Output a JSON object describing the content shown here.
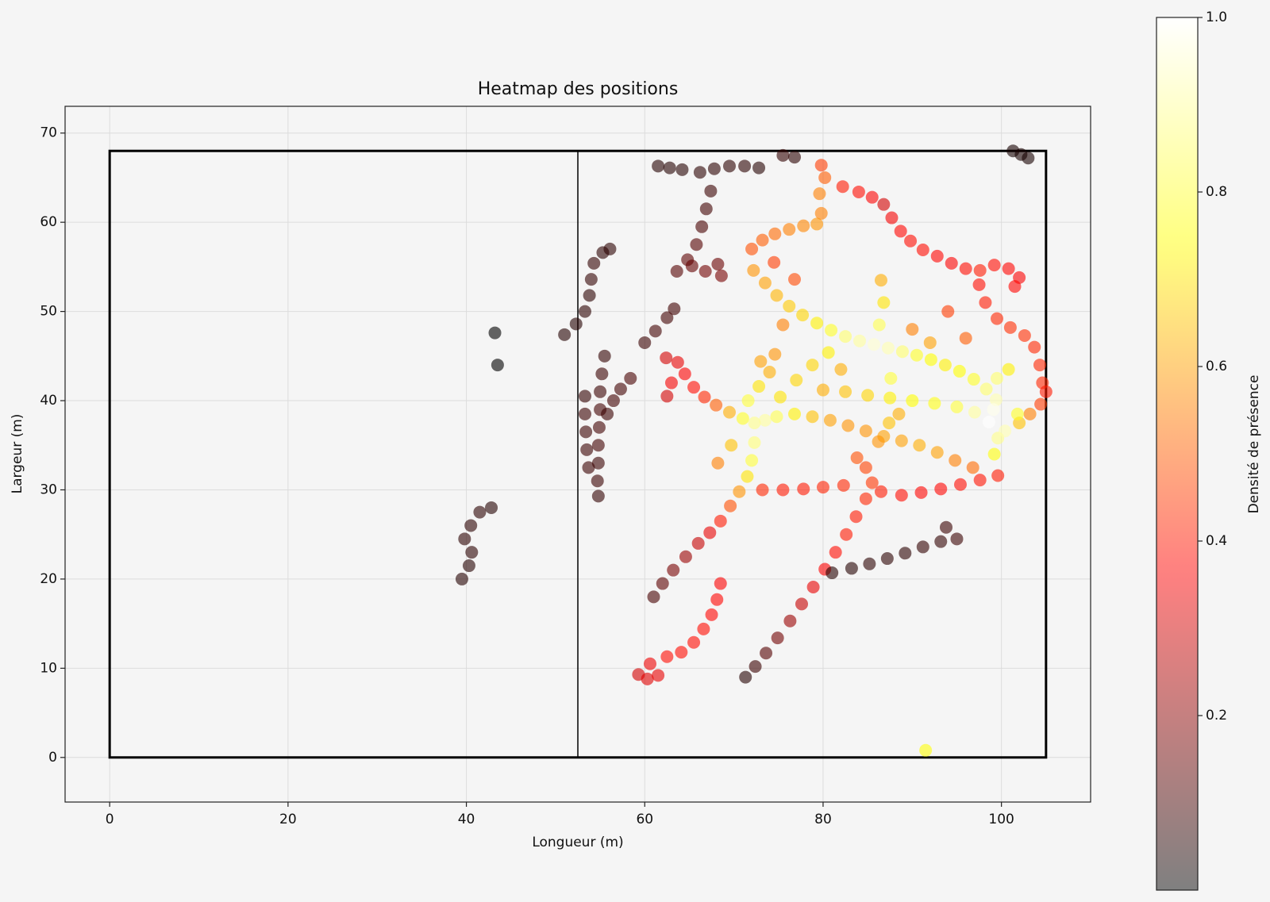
{
  "chart_data": {
    "type": "scatter",
    "title": "Heatmap des positions",
    "x_label": "Longueur (m)",
    "y_label": "Largeur (m)",
    "xlim": [
      -5,
      110
    ],
    "ylim": [
      -5,
      73
    ],
    "xticks": [
      0,
      20,
      40,
      60,
      80,
      100
    ],
    "yticks": [
      0,
      10,
      20,
      30,
      40,
      50,
      60,
      70
    ],
    "grid": true,
    "pitch": {
      "x": [
        0,
        105
      ],
      "y": [
        0,
        68
      ],
      "halfway": 52.5
    },
    "colormap": "hot",
    "clim": [
      0,
      1
    ],
    "colorbar_label": "Densité de présence",
    "cticks": [
      0.2,
      0.4,
      0.6,
      0.8,
      {
        "value": 1,
        "label": "1.0"
      }
    ],
    "x": [
      39.5,
      40.3,
      40.6,
      39.8,
      40.5,
      41.5,
      42.8,
      43.2,
      43.5,
      51,
      52.3,
      53.3,
      53.8,
      54,
      54.3,
      55.3,
      56.1,
      53.3,
      53.3,
      53.4,
      53.5,
      53.7,
      55.5,
      55.2,
      55,
      55,
      54.9,
      54.8,
      54.8,
      54.7,
      54.8,
      55.8,
      56.5,
      57.3,
      58.4,
      60,
      61.2,
      62.5,
      63.3,
      61.5,
      62.8,
      64.2,
      66.2,
      67.8,
      69.5,
      71.2,
      72.8,
      67.4,
      66.9,
      66.4,
      65.8,
      64.8,
      63.6,
      65.3,
      66.8,
      68.2,
      68.6,
      75.5,
      76.8,
      101.3,
      102.2,
      103,
      62.4,
      63.7,
      64.5,
      65.5,
      66.7,
      68,
      69.5,
      71,
      72.3,
      73.5,
      63,
      62.5,
      61,
      62,
      63.2,
      64.6,
      66,
      67.3,
      68.5,
      69.6,
      70.6,
      71.5,
      72,
      72.3,
      59.3,
      60.3,
      61.5,
      60.6,
      62.5,
      64.1,
      65.5,
      66.6,
      67.5,
      68.1,
      68.5,
      71.3,
      72.4,
      73.6,
      74.9,
      76.3,
      77.6,
      78.9,
      80.2,
      81.4,
      82.6,
      83.7,
      84.8,
      85.5,
      84.8,
      83.8,
      73.2,
      75.5,
      77.8,
      80,
      82.3,
      86.5,
      88.8,
      91,
      93.2,
      95.4,
      97.6,
      99.6,
      81,
      83.2,
      85.2,
      87.2,
      89.2,
      91.2,
      93.2,
      95,
      93.8,
      79.8,
      82.2,
      84,
      85.5,
      86.8,
      87.7,
      88.7,
      89.8,
      91.2,
      92.8,
      94.4,
      96,
      97.6,
      99.2,
      100.8,
      102,
      101.5,
      97.5,
      98.2,
      99.5,
      101,
      102.6,
      103.7,
      104.3,
      104.6,
      105,
      104.4,
      103.2,
      102,
      79.6,
      80.2,
      79.8,
      79.3,
      77.8,
      76.2,
      74.6,
      73.2,
      72,
      72.2,
      73.5,
      74.8,
      76.2,
      77.7,
      79.3,
      80.9,
      82.5,
      84.1,
      85.7,
      87.3,
      88.9,
      90.5,
      92.1,
      93.7,
      95.3,
      96.9,
      98.3,
      99.4,
      73,
      74.6,
      74,
      72.8,
      71.6,
      68.2,
      69.7,
      74.8,
      76.8,
      78.8,
      80.8,
      82.8,
      84.8,
      86.8,
      88.8,
      90.8,
      92.8,
      94.8,
      96.8,
      80,
      82.5,
      85,
      87.5,
      90,
      92.5,
      95,
      97,
      98.6,
      75.2,
      77,
      78.8,
      80.6,
      86.2,
      87.4,
      87.6,
      86.3,
      86.8,
      86.5,
      99.2,
      99.6,
      99.1,
      99.5,
      100.8,
      101.8,
      100.4,
      74.5,
      76.8,
      75.5,
      82,
      90,
      92,
      94,
      96,
      88.5,
      91.5
    ],
    "values": [
      20,
      21.5,
      23,
      24.5,
      26,
      27.5,
      28,
      47.6,
      44,
      47.4,
      48.6,
      50,
      51.8,
      53.6,
      55.4,
      56.6,
      57,
      40.5,
      38.5,
      36.5,
      34.5,
      32.5,
      45,
      43,
      41,
      39,
      37,
      35,
      33,
      31,
      29.3,
      38.5,
      40,
      41.3,
      42.5,
      46.5,
      47.8,
      49.3,
      50.3,
      66.3,
      66.1,
      65.9,
      65.6,
      66,
      66.3,
      66.3,
      66.1,
      63.5,
      61.5,
      59.5,
      57.5,
      55.8,
      54.5,
      55.1,
      54.5,
      55.3,
      54,
      67.5,
      67.3,
      68,
      67.6,
      67.2,
      44.8,
      44.3,
      43,
      41.5,
      40.4,
      39.5,
      38.7,
      38,
      37.5,
      37.8,
      42,
      40.5,
      18,
      19.5,
      21,
      22.5,
      24,
      25.2,
      26.5,
      28.2,
      29.8,
      31.5,
      33.3,
      35.3,
      9.3,
      8.8,
      9.2,
      10.5,
      11.3,
      11.8,
      12.9,
      14.4,
      16,
      17.7,
      19.5,
      9,
      10.2,
      11.7,
      13.4,
      15.3,
      17.2,
      19.1,
      21.1,
      23,
      25,
      27,
      29,
      30.8,
      32.5,
      33.6,
      30,
      30,
      30.1,
      30.3,
      30.5,
      29.8,
      29.4,
      29.7,
      30.1,
      30.6,
      31.1,
      31.6,
      20.7,
      21.2,
      21.7,
      22.3,
      22.9,
      23.6,
      24.2,
      24.5,
      25.8,
      66.4,
      64,
      63.4,
      62.8,
      62,
      60.5,
      59,
      57.9,
      56.9,
      56.2,
      55.4,
      54.8,
      54.6,
      55.2,
      54.8,
      53.8,
      52.8,
      53,
      51,
      49.2,
      48.2,
      47.3,
      46,
      44,
      42,
      41,
      39.6,
      38.5,
      37.5,
      63.2,
      65,
      61,
      59.8,
      59.6,
      59.2,
      58.7,
      58,
      57,
      54.6,
      53.2,
      51.8,
      50.6,
      49.6,
      48.7,
      47.9,
      47.2,
      46.7,
      46.3,
      45.9,
      45.5,
      45.1,
      44.6,
      44,
      43.3,
      42.4,
      41.3,
      40.1,
      44.4,
      45.2,
      43.2,
      41.6,
      40,
      33,
      35,
      38.2,
      38.5,
      38.2,
      37.8,
      37.2,
      36.6,
      36,
      35.5,
      35,
      34.2,
      33.3,
      32.5,
      41.2,
      41,
      40.6,
      40.3,
      40,
      39.7,
      39.3,
      38.7,
      37.6,
      40.4,
      42.3,
      44,
      45.4,
      35.4,
      37.5,
      42.5,
      48.5,
      51,
      53.5,
      34,
      35.8,
      39,
      42.5,
      43.5,
      38.5,
      36.6,
      55.5,
      53.6,
      48.5,
      43.5,
      48,
      46.5,
      50,
      47,
      38.5,
      0.8
    ],
    "density": [
      0.05,
      0.05,
      0.06,
      0.06,
      0.06,
      0.06,
      0.05,
      0,
      0,
      0.05,
      0.05,
      0.06,
      0.06,
      0.07,
      0.07,
      0.06,
      0.06,
      0.07,
      0.08,
      0.08,
      0.08,
      0.08,
      0.07,
      0.08,
      0.08,
      0.09,
      0.09,
      0.09,
      0.08,
      0.08,
      0.07,
      0.08,
      0.09,
      0.09,
      0.1,
      0.08,
      0.09,
      0.09,
      0.09,
      0.05,
      0.05,
      0.05,
      0.06,
      0.06,
      0.06,
      0.06,
      0.05,
      0.08,
      0.09,
      0.1,
      0.12,
      0.13,
      0.12,
      0.14,
      0.16,
      0.15,
      0.17,
      0.07,
      0.06,
      0.03,
      0.03,
      0.03,
      0.3,
      0.33,
      0.36,
      0.38,
      0.42,
      0.5,
      0.62,
      0.78,
      0.88,
      0.9,
      0.35,
      0.3,
      0.1,
      0.13,
      0.17,
      0.22,
      0.28,
      0.33,
      0.4,
      0.48,
      0.58,
      0.7,
      0.8,
      0.86,
      0.3,
      0.32,
      0.33,
      0.34,
      0.38,
      0.38,
      0.38,
      0.38,
      0.37,
      0.37,
      0.36,
      0.05,
      0.08,
      0.12,
      0.16,
      0.22,
      0.28,
      0.33,
      0.36,
      0.38,
      0.4,
      0.4,
      0.42,
      0.44,
      0.46,
      0.48,
      0.42,
      0.4,
      0.4,
      0.41,
      0.42,
      0.4,
      0.38,
      0.37,
      0.37,
      0.38,
      0.39,
      0.4,
      0.05,
      0.05,
      0.06,
      0.06,
      0.06,
      0.07,
      0.07,
      0.08,
      0.08,
      0.45,
      0.4,
      0.38,
      0.36,
      0.3,
      0.35,
      0.37,
      0.38,
      0.38,
      0.37,
      0.36,
      0.38,
      0.4,
      0.38,
      0.37,
      0.36,
      0.37,
      0.38,
      0.4,
      0.42,
      0.43,
      0.43,
      0.42,
      0.42,
      0.42,
      0.4,
      0.45,
      0.55,
      0.65,
      0.55,
      0.5,
      0.55,
      0.58,
      0.56,
      0.55,
      0.52,
      0.5,
      0.48,
      0.58,
      0.6,
      0.63,
      0.66,
      0.68,
      0.72,
      0.78,
      0.85,
      0.9,
      0.95,
      0.92,
      0.85,
      0.78,
      0.74,
      0.72,
      0.74,
      0.78,
      0.85,
      0.92,
      0.6,
      0.58,
      0.62,
      0.7,
      0.8,
      0.55,
      0.65,
      0.82,
      0.72,
      0.65,
      0.6,
      0.58,
      0.58,
      0.6,
      0.6,
      0.62,
      0.6,
      0.55,
      0.52,
      0.62,
      0.65,
      0.68,
      0.72,
      0.74,
      0.76,
      0.8,
      0.9,
      1,
      0.7,
      0.68,
      0.68,
      0.72,
      0.58,
      0.65,
      0.8,
      0.82,
      0.7,
      0.62,
      0.75,
      0.88,
      0.98,
      0.85,
      0.72,
      0.78,
      0.92,
      0.45,
      0.47,
      0.55,
      0.62,
      0.55,
      0.6,
      0.45,
      0.5,
      0.62,
      0.75
    ]
  }
}
